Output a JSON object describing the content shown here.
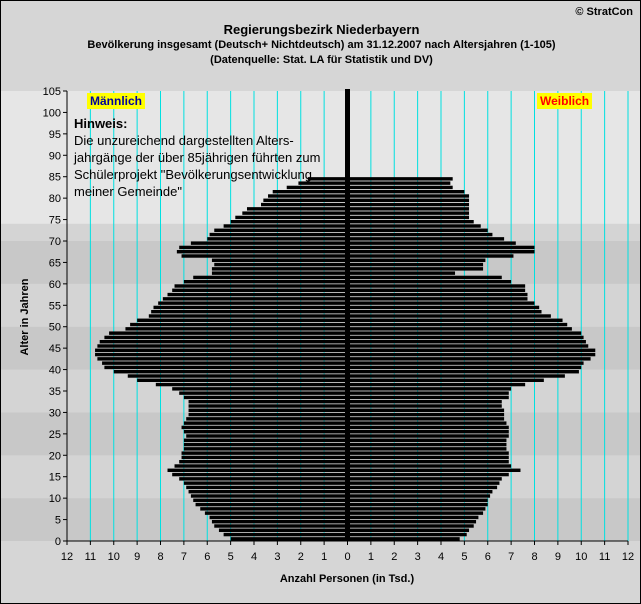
{
  "titles": {
    "main": "Regierungsbezirk Niederbayern",
    "sub": "Bevölkerung  insgesamt (Deutsch+ Nichtdeutsch) am 31.12.2007 nach Altersjahren (1-105)",
    "source": "(Datenquelle: Stat. LA für Statistik und DV)"
  },
  "copyright": "© StratCon",
  "legend": {
    "male": "Männlich",
    "female": "Weiblich"
  },
  "note": {
    "title": "Hinweis:",
    "lines": [
      "Die unzureichend dargestellten Alters-",
      "jahrgänge der über 85jährigen führten zum",
      "Schülerprojekt \"Bevölkerungsentwicklung",
      "meiner Gemeinde\""
    ]
  },
  "colors": {
    "bar": "#000000",
    "grid": "#00e0e0",
    "band_light": "#e6e6e6",
    "band_dark": "#c8c8c8"
  },
  "chart_data": {
    "type": "bar",
    "orientation": "horizontal-population-pyramid",
    "xlabel": "Anzahl Personen (in Tsd.)",
    "ylabel": "Alter in Jahren",
    "xlim": [
      0,
      12
    ],
    "ylim": [
      0,
      105
    ],
    "x_ticks": [
      "12",
      "11",
      "10",
      "9",
      "8",
      "7",
      "6",
      "5",
      "4",
      "3",
      "2",
      "1",
      "0",
      "1",
      "2",
      "3",
      "4",
      "5",
      "6",
      "7",
      "8",
      "9",
      "10",
      "11",
      "12"
    ],
    "y_ticks": [
      "0",
      "5",
      "10",
      "15",
      "20",
      "25",
      "30",
      "35",
      "40",
      "45",
      "50",
      "55",
      "60",
      "65",
      "70",
      "75",
      "80",
      "85",
      "90",
      "95",
      "100",
      "105"
    ],
    "ages": [
      1,
      2,
      3,
      4,
      5,
      6,
      7,
      8,
      9,
      10,
      11,
      12,
      13,
      14,
      15,
      16,
      17,
      18,
      19,
      20,
      21,
      22,
      23,
      24,
      25,
      26,
      27,
      28,
      29,
      30,
      31,
      32,
      33,
      34,
      35,
      36,
      37,
      38,
      39,
      40,
      41,
      42,
      43,
      44,
      45,
      46,
      47,
      48,
      49,
      50,
      51,
      52,
      53,
      54,
      55,
      56,
      57,
      58,
      59,
      60,
      61,
      62,
      63,
      64,
      65,
      66,
      67,
      68,
      69,
      70,
      71,
      72,
      73,
      74,
      75,
      76,
      77,
      78,
      79,
      80,
      81,
      82,
      83,
      84,
      85
    ],
    "series": [
      {
        "name": "Männlich",
        "values": [
          5.0,
          5.3,
          5.5,
          5.7,
          5.8,
          5.9,
          6.1,
          6.3,
          6.5,
          6.6,
          6.7,
          6.8,
          6.9,
          7.0,
          7.2,
          7.5,
          7.7,
          7.4,
          7.2,
          7.1,
          7.1,
          7.0,
          7.0,
          7.0,
          6.9,
          7.0,
          7.1,
          7.0,
          6.9,
          6.8,
          6.8,
          6.8,
          6.8,
          7.0,
          7.2,
          7.5,
          8.2,
          9.0,
          9.4,
          10.0,
          10.4,
          10.5,
          10.7,
          10.8,
          10.8,
          10.7,
          10.6,
          10.4,
          10.2,
          9.5,
          9.3,
          9.0,
          8.5,
          8.4,
          8.3,
          8.1,
          7.9,
          7.7,
          7.5,
          7.4,
          7.0,
          6.6,
          5.8,
          5.8,
          5.7,
          5.8,
          7.1,
          7.3,
          7.2,
          6.7,
          6.0,
          5.9,
          5.7,
          5.3,
          5.0,
          4.8,
          4.5,
          4.3,
          3.7,
          3.6,
          3.4,
          3.2,
          2.6,
          2.1,
          1.7
        ]
      },
      {
        "name": "Weiblich",
        "values": [
          4.8,
          5.1,
          5.2,
          5.4,
          5.5,
          5.6,
          5.8,
          5.9,
          6.0,
          6.0,
          6.1,
          6.2,
          6.4,
          6.5,
          6.6,
          6.9,
          7.4,
          7.0,
          6.9,
          6.9,
          6.9,
          6.8,
          6.8,
          6.8,
          6.9,
          6.9,
          6.9,
          6.8,
          6.7,
          6.7,
          6.7,
          6.6,
          6.6,
          6.9,
          6.9,
          7.0,
          7.6,
          8.4,
          9.3,
          9.9,
          10.0,
          10.1,
          10.4,
          10.6,
          10.6,
          10.3,
          10.2,
          10.1,
          10.0,
          9.6,
          9.4,
          9.2,
          8.7,
          8.3,
          8.2,
          8.0,
          7.7,
          7.7,
          7.6,
          7.6,
          7.0,
          6.6,
          4.6,
          5.8,
          5.8,
          5.9,
          7.1,
          8.0,
          8.0,
          7.2,
          6.7,
          6.2,
          6.0,
          5.7,
          5.4,
          5.2,
          5.2,
          5.2,
          5.2,
          5.2,
          5.2,
          5.0,
          4.5,
          4.4,
          4.5
        ]
      }
    ]
  }
}
